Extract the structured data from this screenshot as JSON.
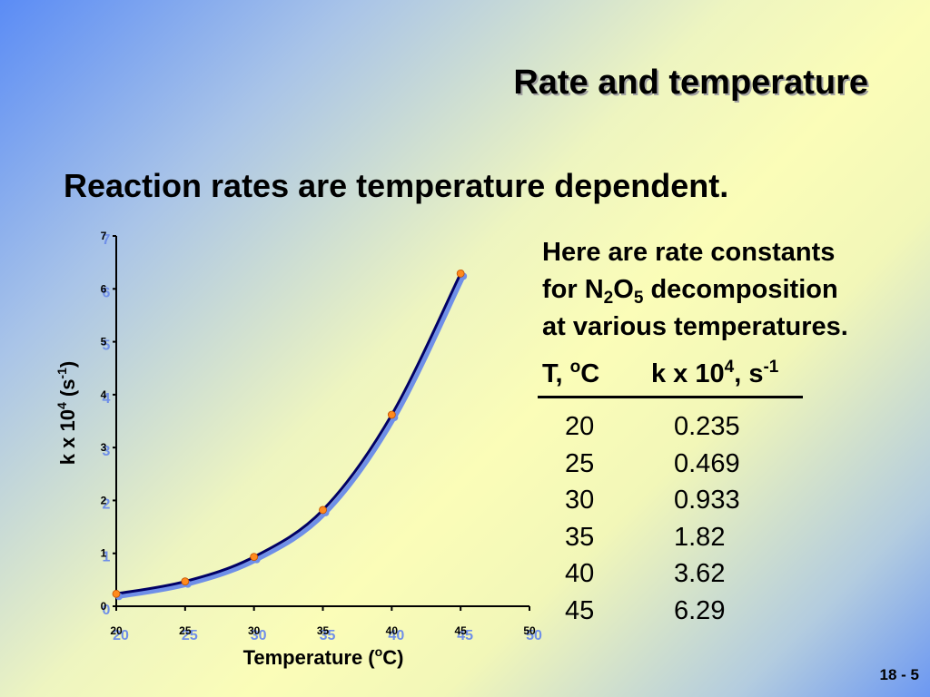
{
  "slide": {
    "title": "Rate and temperature",
    "subtitle": "Reaction rates are temperature dependent.",
    "page_number": "18 - 5"
  },
  "description": {
    "line1": "Here are rate constants",
    "line2_prefix": "for N",
    "line2_sub1": "2",
    "line2_mid": "O",
    "line2_sub2": "5",
    "line2_suffix": " decomposition",
    "line3": "at various temperatures."
  },
  "table": {
    "col1_header": "T, ",
    "col1_sup": "o",
    "col1_unit": "C",
    "col2_header": "k x 10",
    "col2_sup": "4",
    "col2_unit": ", s",
    "col2_unit_sup": "-1",
    "rows": [
      {
        "t": "20",
        "k": "0.235"
      },
      {
        "t": "25",
        "k": "0.469"
      },
      {
        "t": "30",
        "k": "0.933"
      },
      {
        "t": "35",
        "k": "1.82"
      },
      {
        "t": "40",
        "k": "3.62"
      },
      {
        "t": "45",
        "k": "6.29"
      }
    ]
  },
  "chart_data": {
    "type": "line",
    "x": [
      20,
      25,
      30,
      35,
      40,
      45
    ],
    "series": [
      {
        "values": [
          0.235,
          0.469,
          0.933,
          1.82,
          3.62,
          6.29
        ]
      }
    ],
    "xlim": [
      20,
      50
    ],
    "ylim": [
      0,
      7
    ],
    "x_ticks": [
      "20",
      "25",
      "30",
      "35",
      "40",
      "45",
      "50"
    ],
    "y_ticks": [
      "0",
      "1",
      "2",
      "3",
      "4",
      "5",
      "6",
      "7"
    ],
    "xlabel": "Temperature (oC)",
    "xlabel_prefix": "Temperature (",
    "xlabel_sup": "o",
    "xlabel_suffix": "C)",
    "ylabel": "k x 104 (s-1)",
    "ylabel_prefix": "k x 10",
    "ylabel_sup1": "4",
    "ylabel_mid": " (s",
    "ylabel_sup2": "-1",
    "ylabel_suffix": ")",
    "grid": false,
    "line_color": "#000066",
    "shadow_color": "#6f8fe8",
    "marker_color": "#ff8a1c"
  }
}
